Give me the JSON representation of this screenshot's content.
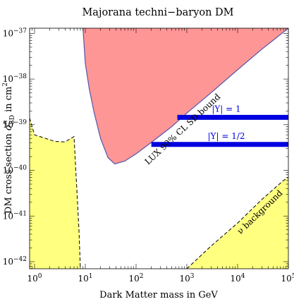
{
  "chart_data": {
    "type": "area",
    "title": "Majorana techni−baryon DM",
    "xlabel": "Dark Matter mass in GeV",
    "ylabel": "DM cross section σⁿ_SD in cm²",
    "ylabel_parts": {
      "prefix": "DM cross section ",
      "sigma": "σ",
      "sup": "n",
      "sub": "SD",
      "suffix": " in cm",
      "unit_sup": "2"
    },
    "x_scale": "log",
    "y_scale": "log",
    "xlim": [
      0.8,
      100000
    ],
    "ylim": [
      7e-43,
      1.3e-37
    ],
    "x_ticks": [
      {
        "value": 1,
        "base": "10",
        "exp": "0"
      },
      {
        "value": 10,
        "base": "10",
        "exp": "1"
      },
      {
        "value": 100,
        "base": "10",
        "exp": "2"
      },
      {
        "value": 1000,
        "base": "10",
        "exp": "3"
      },
      {
        "value": 10000,
        "base": "10",
        "exp": "4"
      },
      {
        "value": 100000,
        "base": "10",
        "exp": "5"
      }
    ],
    "y_ticks": [
      {
        "value": 1e-42,
        "base": "10",
        "exp": "−42"
      },
      {
        "value": 1e-41,
        "base": "10",
        "exp": "−41"
      },
      {
        "value": 1e-40,
        "base": "10",
        "exp": "−40"
      },
      {
        "value": 1e-39,
        "base": "10",
        "exp": "−39"
      },
      {
        "value": 1e-38,
        "base": "10",
        "exp": "−38"
      },
      {
        "value": 1e-37,
        "base": "10",
        "exp": "−37"
      }
    ],
    "grid": false,
    "series": [
      {
        "name": "|Y| = 1",
        "kind": "line",
        "color": "#0000e0",
        "points": [
          [
            650,
            1.45e-39
          ],
          [
            100000,
            1.45e-39
          ]
        ]
      },
      {
        "name": "|Y| = 1/2",
        "kind": "line",
        "color": "#0000e0",
        "points": [
          [
            200,
            3.7e-40
          ],
          [
            100000,
            3.7e-40
          ]
        ]
      }
    ],
    "regions": [
      {
        "label": "LUX 90% CL SD bound",
        "fill": "#ff9696",
        "stroke": "#5555aa",
        "boundary": [
          [
            9,
            1.3e-37
          ],
          [
            10,
            2.2e-38
          ],
          [
            12,
            6e-39
          ],
          [
            15,
            1.8e-39
          ],
          [
            20,
            5e-40
          ],
          [
            28,
            1.9e-40
          ],
          [
            38,
            1.38e-40
          ],
          [
            60,
            1.6e-40
          ],
          [
            100,
            2.3e-40
          ],
          [
            200,
            4.1e-40
          ],
          [
            500,
            9e-40
          ],
          [
            1000,
            1.8e-39
          ],
          [
            3000,
            5e-39
          ],
          [
            10000,
            1.6e-38
          ],
          [
            30000,
            4.5e-38
          ],
          [
            100000,
            1.3e-37
          ]
        ]
      },
      {
        "label": "",
        "fill": "#ffff80",
        "stroke": "#000000",
        "stroke_style": "dashed",
        "boundary": [
          [
            0.8,
            1.4e-39
          ],
          [
            1,
            6e-40
          ],
          [
            1.5,
            5.2e-40
          ],
          [
            2.5,
            4.3e-40
          ],
          [
            4,
            4.2e-40
          ],
          [
            6,
            5.5e-40
          ],
          [
            7.5,
            5e-42
          ],
          [
            8,
            7e-43
          ]
        ]
      },
      {
        "label": "ν background",
        "fill": "#ffff80",
        "stroke": "#000000",
        "stroke_style": "dashed",
        "boundary": [
          [
            1000,
            7e-43
          ],
          [
            3000,
            2.2e-42
          ],
          [
            10000,
            7e-42
          ],
          [
            30000,
            2.3e-41
          ],
          [
            80000,
            6e-41
          ],
          [
            100000,
            7e-41
          ]
        ]
      }
    ]
  }
}
